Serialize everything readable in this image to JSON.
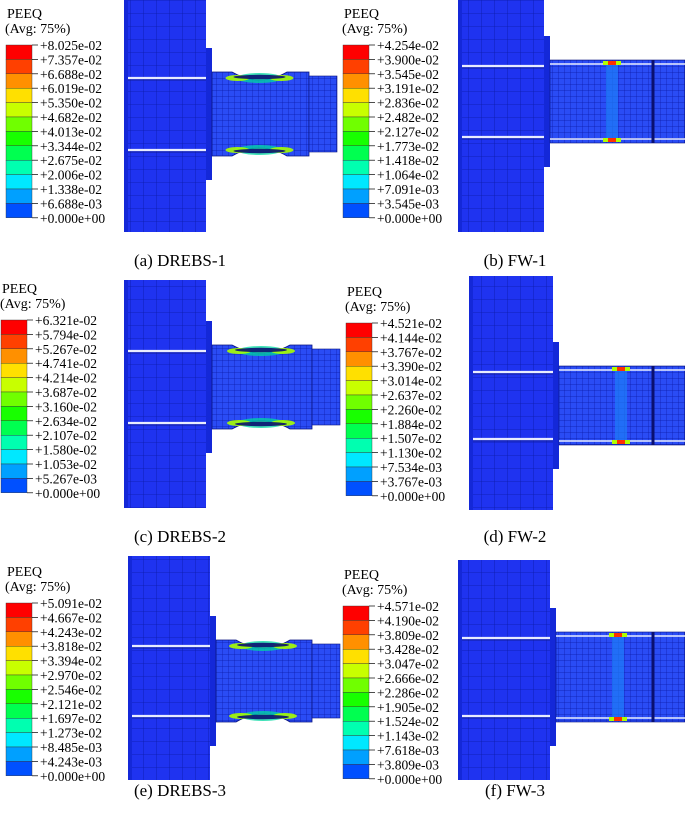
{
  "legend_title": "PEEQ",
  "legend_subtitle": "(Avg: 75%)",
  "colors": [
    "#0000ff",
    "#0050ff",
    "#00a0ff",
    "#00e8ff",
    "#00ffb0",
    "#00ff50",
    "#18ff00",
    "#70ff00",
    "#c8ff00",
    "#ffe000",
    "#ff9000",
    "#ff4000",
    "#ff0000"
  ],
  "panels": [
    {
      "id": "a",
      "caption": "(a) DREBS-1",
      "type": "drebs",
      "legend_values": [
        "+8.025e-02",
        "+7.357e-02",
        "+6.688e-02",
        "+6.019e-02",
        "+5.350e-02",
        "+4.682e-02",
        "+4.013e-02",
        "+3.344e-02",
        "+2.675e-02",
        "+2.006e-02",
        "+1.338e-02",
        "+6.688e-03",
        "+0.000e+00"
      ]
    },
    {
      "id": "b",
      "caption": "(b) FW-1",
      "type": "fw",
      "legend_values": [
        "+4.254e-02",
        "+3.900e-02",
        "+3.545e-02",
        "+3.191e-02",
        "+2.836e-02",
        "+2.482e-02",
        "+2.127e-02",
        "+1.773e-02",
        "+1.418e-02",
        "+1.064e-02",
        "+7.091e-03",
        "+3.545e-03",
        "+0.000e+00"
      ]
    },
    {
      "id": "c",
      "caption": "(c) DREBS-2",
      "type": "drebs",
      "legend_values": [
        "+6.321e-02",
        "+5.794e-02",
        "+5.267e-02",
        "+4.741e-02",
        "+4.214e-02",
        "+3.687e-02",
        "+3.160e-02",
        "+2.634e-02",
        "+2.107e-02",
        "+1.580e-02",
        "+1.053e-02",
        "+5.267e-03",
        "+0.000e+00"
      ]
    },
    {
      "id": "d",
      "caption": "(d) FW-2",
      "type": "fw",
      "legend_values": [
        "+4.521e-02",
        "+4.144e-02",
        "+3.767e-02",
        "+3.390e-02",
        "+3.014e-02",
        "+2.637e-02",
        "+2.260e-02",
        "+1.884e-02",
        "+1.507e-02",
        "+1.130e-02",
        "+7.534e-03",
        "+3.767e-03",
        "+0.000e+00"
      ]
    },
    {
      "id": "e",
      "caption": "(e) DREBS-3",
      "type": "drebs",
      "legend_values": [
        "+5.091e-02",
        "+4.667e-02",
        "+4.243e-02",
        "+3.818e-02",
        "+3.394e-02",
        "+2.970e-02",
        "+2.546e-02",
        "+2.121e-02",
        "+1.697e-02",
        "+1.273e-02",
        "+8.485e-03",
        "+4.243e-03",
        "+0.000e+00"
      ]
    },
    {
      "id": "f",
      "caption": "(f) FW-3",
      "type": "fw",
      "legend_values": [
        "+4.571e-02",
        "+4.190e-02",
        "+3.809e-02",
        "+3.428e-02",
        "+3.047e-02",
        "+2.666e-02",
        "+2.286e-02",
        "+1.905e-02",
        "+1.524e-02",
        "+1.143e-02",
        "+7.618e-03",
        "+3.809e-03",
        "+0.000e+00"
      ]
    }
  ]
}
